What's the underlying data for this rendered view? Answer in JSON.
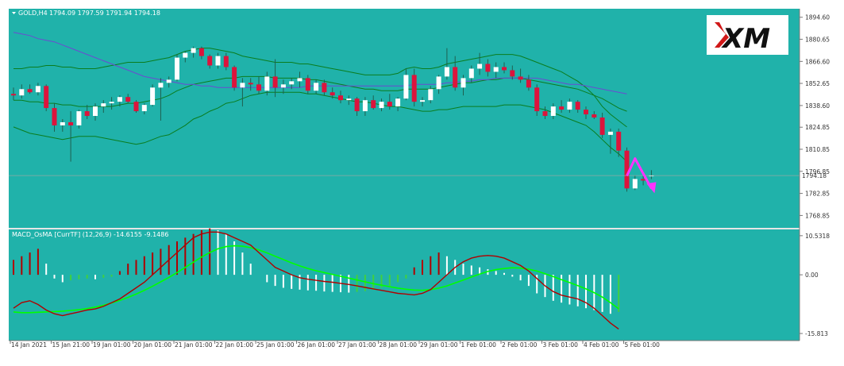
{
  "chart_data": [
    {
      "type": "candlestick",
      "symbol_header": "GOLD,H4",
      "ohlc_header": "1794.09 1797.59 1791.94 1794.18",
      "y_ticks": [
        "1894.60",
        "1880.65",
        "1866.60",
        "1852.65",
        "1838.60",
        "1824.85",
        "1810.85",
        "1796.85",
        "1782.85",
        "1768.85"
      ],
      "ylim": [
        1762.0,
        1899.0
      ],
      "current_price_label": "1794.18",
      "current_price": 1794.18,
      "logo_text": "XM",
      "candles": [
        {
          "o": 1846,
          "h": 1850,
          "l": 1842,
          "c": 1845
        },
        {
          "o": 1845,
          "h": 1852,
          "l": 1843,
          "c": 1849
        },
        {
          "o": 1849,
          "h": 1852,
          "l": 1846,
          "c": 1847
        },
        {
          "o": 1847,
          "h": 1853,
          "l": 1845,
          "c": 1851
        },
        {
          "o": 1851,
          "h": 1852,
          "l": 1835,
          "c": 1837
        },
        {
          "o": 1837,
          "h": 1840,
          "l": 1822,
          "c": 1826
        },
        {
          "o": 1826,
          "h": 1830,
          "l": 1822,
          "c": 1828
        },
        {
          "o": 1828,
          "h": 1835,
          "l": 1803,
          "c": 1826
        },
        {
          "o": 1826,
          "h": 1836,
          "l": 1824,
          "c": 1835
        },
        {
          "o": 1835,
          "h": 1839,
          "l": 1830,
          "c": 1832
        },
        {
          "o": 1832,
          "h": 1840,
          "l": 1829,
          "c": 1838
        },
        {
          "o": 1838,
          "h": 1842,
          "l": 1834,
          "c": 1840
        },
        {
          "o": 1840,
          "h": 1844,
          "l": 1836,
          "c": 1841
        },
        {
          "o": 1841,
          "h": 1845,
          "l": 1838,
          "c": 1844
        },
        {
          "o": 1844,
          "h": 1846,
          "l": 1840,
          "c": 1841
        },
        {
          "o": 1841,
          "h": 1842,
          "l": 1834,
          "c": 1835
        },
        {
          "o": 1835,
          "h": 1840,
          "l": 1833,
          "c": 1839
        },
        {
          "o": 1839,
          "h": 1852,
          "l": 1838,
          "c": 1850
        },
        {
          "o": 1850,
          "h": 1856,
          "l": 1829,
          "c": 1853
        },
        {
          "o": 1853,
          "h": 1857,
          "l": 1850,
          "c": 1855
        },
        {
          "o": 1855,
          "h": 1871,
          "l": 1854,
          "c": 1869
        },
        {
          "o": 1869,
          "h": 1873,
          "l": 1866,
          "c": 1872
        },
        {
          "o": 1872,
          "h": 1876,
          "l": 1869,
          "c": 1875
        },
        {
          "o": 1875,
          "h": 1876,
          "l": 1868,
          "c": 1870
        },
        {
          "o": 1870,
          "h": 1871,
          "l": 1862,
          "c": 1864
        },
        {
          "o": 1864,
          "h": 1872,
          "l": 1862,
          "c": 1870
        },
        {
          "o": 1870,
          "h": 1872,
          "l": 1861,
          "c": 1863
        },
        {
          "o": 1863,
          "h": 1864,
          "l": 1848,
          "c": 1850
        },
        {
          "o": 1850,
          "h": 1856,
          "l": 1838,
          "c": 1853
        },
        {
          "o": 1853,
          "h": 1856,
          "l": 1848,
          "c": 1852
        },
        {
          "o": 1852,
          "h": 1857,
          "l": 1846,
          "c": 1848
        },
        {
          "o": 1848,
          "h": 1860,
          "l": 1845,
          "c": 1857
        },
        {
          "o": 1857,
          "h": 1868,
          "l": 1844,
          "c": 1850
        },
        {
          "o": 1850,
          "h": 1855,
          "l": 1846,
          "c": 1852
        },
        {
          "o": 1852,
          "h": 1856,
          "l": 1849,
          "c": 1854
        },
        {
          "o": 1854,
          "h": 1860,
          "l": 1850,
          "c": 1856
        },
        {
          "o": 1856,
          "h": 1858,
          "l": 1846,
          "c": 1848
        },
        {
          "o": 1848,
          "h": 1855,
          "l": 1846,
          "c": 1853
        },
        {
          "o": 1853,
          "h": 1855,
          "l": 1845,
          "c": 1847
        },
        {
          "o": 1847,
          "h": 1850,
          "l": 1843,
          "c": 1845
        },
        {
          "o": 1845,
          "h": 1848,
          "l": 1840,
          "c": 1842
        },
        {
          "o": 1842,
          "h": 1845,
          "l": 1839,
          "c": 1843
        },
        {
          "o": 1843,
          "h": 1844,
          "l": 1832,
          "c": 1835
        },
        {
          "o": 1835,
          "h": 1844,
          "l": 1832,
          "c": 1842
        },
        {
          "o": 1842,
          "h": 1845,
          "l": 1836,
          "c": 1837
        },
        {
          "o": 1837,
          "h": 1843,
          "l": 1835,
          "c": 1841
        },
        {
          "o": 1841,
          "h": 1846,
          "l": 1836,
          "c": 1838
        },
        {
          "o": 1838,
          "h": 1844,
          "l": 1835,
          "c": 1843
        },
        {
          "o": 1843,
          "h": 1862,
          "l": 1842,
          "c": 1858
        },
        {
          "o": 1858,
          "h": 1862,
          "l": 1838,
          "c": 1841
        },
        {
          "o": 1841,
          "h": 1844,
          "l": 1838,
          "c": 1842
        },
        {
          "o": 1842,
          "h": 1851,
          "l": 1840,
          "c": 1849
        },
        {
          "o": 1849,
          "h": 1858,
          "l": 1846,
          "c": 1857
        },
        {
          "o": 1857,
          "h": 1875,
          "l": 1855,
          "c": 1863
        },
        {
          "o": 1863,
          "h": 1870,
          "l": 1848,
          "c": 1850
        },
        {
          "o": 1850,
          "h": 1858,
          "l": 1845,
          "c": 1856
        },
        {
          "o": 1856,
          "h": 1864,
          "l": 1853,
          "c": 1862
        },
        {
          "o": 1862,
          "h": 1872,
          "l": 1858,
          "c": 1865
        },
        {
          "o": 1865,
          "h": 1868,
          "l": 1857,
          "c": 1860
        },
        {
          "o": 1860,
          "h": 1866,
          "l": 1856,
          "c": 1863
        },
        {
          "o": 1863,
          "h": 1866,
          "l": 1859,
          "c": 1861
        },
        {
          "o": 1861,
          "h": 1864,
          "l": 1855,
          "c": 1857
        },
        {
          "o": 1857,
          "h": 1862,
          "l": 1853,
          "c": 1855
        },
        {
          "o": 1855,
          "h": 1858,
          "l": 1848,
          "c": 1850
        },
        {
          "o": 1850,
          "h": 1852,
          "l": 1832,
          "c": 1835
        },
        {
          "o": 1835,
          "h": 1838,
          "l": 1830,
          "c": 1832
        },
        {
          "o": 1832,
          "h": 1840,
          "l": 1830,
          "c": 1838
        },
        {
          "o": 1838,
          "h": 1842,
          "l": 1834,
          "c": 1836
        },
        {
          "o": 1836,
          "h": 1843,
          "l": 1834,
          "c": 1841
        },
        {
          "o": 1841,
          "h": 1842,
          "l": 1834,
          "c": 1836
        },
        {
          "o": 1836,
          "h": 1838,
          "l": 1830,
          "c": 1833
        },
        {
          "o": 1833,
          "h": 1835,
          "l": 1830,
          "c": 1831
        },
        {
          "o": 1831,
          "h": 1834,
          "l": 1818,
          "c": 1820
        },
        {
          "o": 1820,
          "h": 1824,
          "l": 1808,
          "c": 1822
        },
        {
          "o": 1822,
          "h": 1824,
          "l": 1806,
          "c": 1810
        },
        {
          "o": 1810,
          "h": 1812,
          "l": 1784,
          "c": 1786
        },
        {
          "o": 1786,
          "h": 1794,
          "l": 1785,
          "c": 1792
        },
        {
          "o": 1792,
          "h": 1797,
          "l": 1788,
          "c": 1791
        },
        {
          "o": 1794.09,
          "h": 1797.59,
          "l": 1791.94,
          "c": 1794.18
        }
      ],
      "bb_upper": [
        1862,
        1862,
        1863,
        1863,
        1864,
        1864,
        1863,
        1863,
        1862,
        1862,
        1862,
        1863,
        1864,
        1865,
        1866,
        1866,
        1866,
        1867,
        1868,
        1869,
        1871,
        1873,
        1874,
        1875,
        1875,
        1874,
        1873,
        1872,
        1870,
        1869,
        1868,
        1867,
        1866,
        1866,
        1866,
        1865,
        1865,
        1864,
        1863,
        1862,
        1861,
        1860,
        1859,
        1858,
        1858,
        1858,
        1858,
        1859,
        1862,
        1863,
        1862,
        1862,
        1863,
        1865,
        1866,
        1867,
        1868,
        1869,
        1870,
        1871,
        1871,
        1871,
        1870,
        1868,
        1866,
        1864,
        1862,
        1860,
        1857,
        1854,
        1850,
        1845,
        1838,
        1833,
        1829,
        1825
      ],
      "bb_mid": [
        1842,
        1842,
        1841,
        1841,
        1840,
        1840,
        1839,
        1839,
        1838,
        1838,
        1838,
        1838,
        1838,
        1839,
        1840,
        1840,
        1841,
        1842,
        1843,
        1845,
        1848,
        1850,
        1852,
        1853,
        1854,
        1855,
        1856,
        1856,
        1857,
        1857,
        1857,
        1857,
        1856,
        1856,
        1856,
        1856,
        1855,
        1855,
        1854,
        1853,
        1852,
        1851,
        1850,
        1849,
        1849,
        1848,
        1848,
        1848,
        1849,
        1849,
        1849,
        1849,
        1850,
        1851,
        1852,
        1853,
        1853,
        1854,
        1855,
        1855,
        1856,
        1856,
        1856,
        1855,
        1854,
        1853,
        1852,
        1851,
        1850,
        1849,
        1847,
        1845,
        1843,
        1840,
        1837,
        1835
      ],
      "bb_lower": [
        1825,
        1823,
        1821,
        1820,
        1819,
        1818,
        1817,
        1818,
        1819,
        1819,
        1819,
        1818,
        1817,
        1816,
        1815,
        1814,
        1815,
        1817,
        1819,
        1820,
        1823,
        1826,
        1830,
        1832,
        1835,
        1837,
        1840,
        1841,
        1843,
        1845,
        1846,
        1847,
        1847,
        1847,
        1847,
        1847,
        1846,
        1846,
        1845,
        1844,
        1843,
        1842,
        1841,
        1841,
        1840,
        1839,
        1838,
        1838,
        1837,
        1836,
        1835,
        1835,
        1836,
        1836,
        1837,
        1838,
        1838,
        1838,
        1838,
        1838,
        1839,
        1839,
        1839,
        1838,
        1837,
        1836,
        1834,
        1832,
        1830,
        1828,
        1826,
        1822,
        1817,
        1812,
        1808,
        1803
      ],
      "ma_purple": [
        1885,
        1884,
        1883,
        1881,
        1880,
        1879,
        1877,
        1875,
        1873,
        1871,
        1869,
        1867,
        1865,
        1863,
        1861,
        1859,
        1857,
        1856,
        1855,
        1854,
        1853,
        1852,
        1852,
        1851,
        1851,
        1850,
        1850,
        1850,
        1850,
        1850,
        1850,
        1850,
        1850,
        1850,
        1850,
        1850,
        1851,
        1851,
        1851,
        1851,
        1851,
        1851,
        1851,
        1851,
        1851,
        1851,
        1851,
        1851,
        1851,
        1852,
        1852,
        1852,
        1852,
        1853,
        1853,
        1854,
        1854,
        1855,
        1855,
        1856,
        1856,
        1856,
        1856,
        1856,
        1856,
        1855,
        1854,
        1853,
        1852,
        1852,
        1851,
        1850,
        1849,
        1848,
        1847,
        1846
      ],
      "projection": [
        [
          75,
          1794
        ],
        [
          76,
          1805
        ],
        [
          78,
          1786
        ]
      ]
    },
    {
      "type": "macd",
      "title": "MACD_OsMA [CurrTF] (12,26,9) -14.6155 -9.1486",
      "y_ticks": [
        "10.5318",
        "0.00",
        "-15.813"
      ],
      "ylim": [
        -17.3,
        12.0
      ],
      "histogram": [
        4,
        5,
        6,
        7,
        3,
        -1,
        -2,
        -1.5,
        -1.2,
        -1.0,
        -1.2,
        -0.8,
        -0.5,
        1,
        3,
        4,
        5,
        6,
        7,
        8,
        9,
        10,
        11,
        12,
        12.5,
        12,
        11,
        9,
        6,
        3,
        0,
        -2,
        -3,
        -3.5,
        -3.8,
        -4,
        -4.2,
        -4.3,
        -4.5,
        -4.6,
        -4.7,
        -4.8,
        -4.6,
        -4.4,
        -4,
        -3.5,
        -3,
        -2,
        -1,
        2,
        4,
        5,
        6,
        5,
        4,
        3,
        2.5,
        2,
        1.5,
        1,
        0.5,
        -0.5,
        -1.5,
        -3,
        -5,
        -6,
        -7,
        -7.5,
        -8,
        -8.5,
        -9,
        -9.5,
        -10,
        -10.5,
        -10
      ],
      "macd": [
        -9,
        -7.5,
        -7,
        -8,
        -9.5,
        -10.5,
        -11,
        -10.5,
        -10,
        -9.5,
        -9.2,
        -8.5,
        -7.5,
        -6.5,
        -5,
        -3.5,
        -2,
        0,
        2,
        4,
        6,
        8,
        10,
        11,
        11.5,
        11.5,
        11,
        10,
        9,
        8,
        6,
        4,
        2,
        1,
        0,
        -0.8,
        -1.2,
        -1.5,
        -1.8,
        -2,
        -2.3,
        -2.6,
        -3,
        -3.4,
        -3.8,
        -4.2,
        -4.6,
        -5,
        -5.2,
        -5.4,
        -5,
        -4,
        -2,
        0,
        2,
        3.5,
        4.5,
        5,
        5.2,
        5,
        4.5,
        3.5,
        2.5,
        1,
        -1,
        -3,
        -4.5,
        -5.5,
        -6,
        -6.5,
        -7.5,
        -9,
        -11,
        -13,
        -14.6155
      ],
      "signal": [
        -10,
        -10.2,
        -10.2,
        -10.1,
        -10,
        -9.9,
        -9.8,
        -9.6,
        -9.4,
        -9.1,
        -8.7,
        -8.2,
        -7.6,
        -6.9,
        -6.1,
        -5.2,
        -4.2,
        -3.1,
        -1.9,
        -0.7,
        0.6,
        2,
        3.4,
        4.8,
        6,
        7,
        7.6,
        7.8,
        7.7,
        7.3,
        6.7,
        5.9,
        5,
        4.1,
        3.2,
        2.4,
        1.7,
        1.1,
        0.6,
        0.1,
        -0.4,
        -0.9,
        -1.4,
        -1.9,
        -2.4,
        -2.8,
        -3.2,
        -3.6,
        -3.9,
        -4.1,
        -4.2,
        -4,
        -3.6,
        -3,
        -2.2,
        -1.4,
        -0.6,
        0.2,
        0.9,
        1.4,
        1.7,
        1.9,
        1.8,
        1.5,
        1,
        0.3,
        -0.5,
        -1.3,
        -2.1,
        -2.9,
        -3.8,
        -4.8,
        -6,
        -7.5,
        -9.1486
      ]
    }
  ],
  "x_labels": [
    "14 Jan 2021",
    "15 Jan 21:00",
    "19 Jan 01:00",
    "20 Jan 01:00",
    "21 Jan 01:00",
    "22 Jan 01:00",
    "25 Jan 01:00",
    "26 Jan 01:00",
    "27 Jan 01:00",
    "28 Jan 01:00",
    "29 Jan 01:00",
    "1 Feb 01:00",
    "2 Feb 01:00",
    "3 Feb 01:00",
    "4 Feb 01:00",
    "5 Feb 01:00"
  ],
  "colors": {
    "background": "#20b2aa",
    "bull": "#ffffff",
    "bear": "#dc143c",
    "bb": "#0a7d1e",
    "ma": "#6b4bd2",
    "arrow": "#ff33ff",
    "macd_line": "#b00000",
    "signal_line": "#00ff00"
  }
}
